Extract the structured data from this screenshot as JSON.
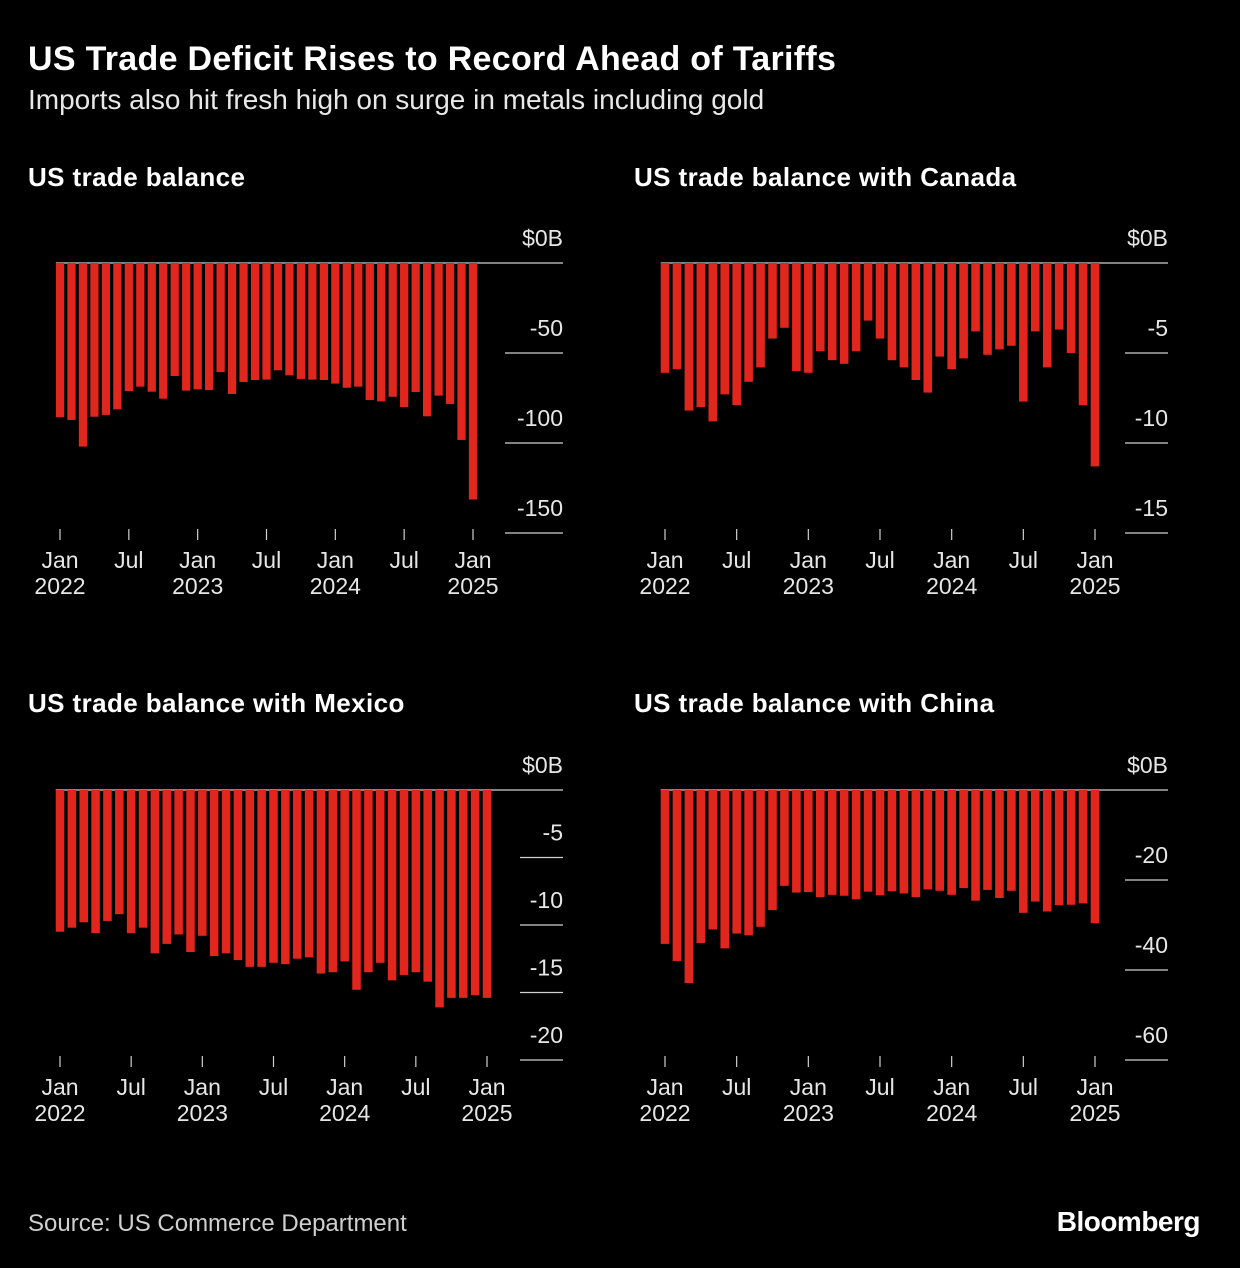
{
  "title": "US Trade Deficit Rises to Record Ahead of Tariffs",
  "subtitle": "Imports also hit fresh high on surge in metals including gold",
  "source": "Source: US Commerce Department",
  "brand": "Bloomberg",
  "colors": {
    "bar": "#e0261d",
    "background": "#000000",
    "axis": "#d0d0d0"
  },
  "chart_data": [
    {
      "type": "bar",
      "title": "US trade balance",
      "ylim": [
        -150,
        0
      ],
      "yticks": [
        0,
        -50,
        -100,
        -150
      ],
      "ytick_labels": [
        "$0B",
        "-50",
        "-100",
        "-150"
      ],
      "xtick_labels": [
        [
          "Jan",
          "2022"
        ],
        [
          "Jul",
          ""
        ],
        [
          "Jan",
          "2023"
        ],
        [
          "Jul",
          ""
        ],
        [
          "Jan",
          "2024"
        ],
        [
          "Jul",
          ""
        ],
        [
          "Jan",
          "2025"
        ]
      ],
      "x": [
        "2022-01",
        "2022-02",
        "2022-03",
        "2022-04",
        "2022-05",
        "2022-06",
        "2022-07",
        "2022-08",
        "2022-09",
        "2022-10",
        "2022-11",
        "2022-12",
        "2023-01",
        "2023-02",
        "2023-03",
        "2023-04",
        "2023-05",
        "2023-06",
        "2023-07",
        "2023-08",
        "2023-09",
        "2023-10",
        "2023-11",
        "2023-12",
        "2024-01",
        "2024-02",
        "2024-03",
        "2024-04",
        "2024-05",
        "2024-06",
        "2024-07",
        "2024-08",
        "2024-09",
        "2024-10",
        "2024-11",
        "2024-12",
        "2025-01"
      ],
      "values": [
        -85.7,
        -87.2,
        -102.0,
        -85.4,
        -84.4,
        -81.3,
        -71.1,
        -68.7,
        -71.5,
        -75.4,
        -62.8,
        -70.9,
        -70.2,
        -70.6,
        -60.6,
        -72.8,
        -66.1,
        -65.0,
        -64.8,
        -59.6,
        -62.4,
        -64.4,
        -64.8,
        -65.0,
        -67.0,
        -69.3,
        -68.7,
        -76.1,
        -76.9,
        -74.3,
        -80.0,
        -71.7,
        -85.2,
        -73.7,
        -78.3,
        -98.3,
        -131.4
      ]
    },
    {
      "type": "bar",
      "title": "US trade balance with Canada",
      "ylim": [
        -15,
        0
      ],
      "yticks": [
        0,
        -5,
        -10,
        -15
      ],
      "ytick_labels": [
        "$0B",
        "-5",
        "-10",
        "-15"
      ],
      "xtick_labels": [
        [
          "Jan",
          "2022"
        ],
        [
          "Jul",
          ""
        ],
        [
          "Jan",
          "2023"
        ],
        [
          "Jul",
          ""
        ],
        [
          "Jan",
          "2024"
        ],
        [
          "Jul",
          ""
        ],
        [
          "Jan",
          "2025"
        ]
      ],
      "x": [
        "2022-01",
        "2022-02",
        "2022-03",
        "2022-04",
        "2022-05",
        "2022-06",
        "2022-07",
        "2022-08",
        "2022-09",
        "2022-10",
        "2022-11",
        "2022-12",
        "2023-01",
        "2023-02",
        "2023-03",
        "2023-04",
        "2023-05",
        "2023-06",
        "2023-07",
        "2023-08",
        "2023-09",
        "2023-10",
        "2023-11",
        "2023-12",
        "2024-01",
        "2024-02",
        "2024-03",
        "2024-04",
        "2024-05",
        "2024-06",
        "2024-07",
        "2024-08",
        "2024-09",
        "2024-10",
        "2024-11",
        "2024-12",
        "2025-01"
      ],
      "values": [
        -6.1,
        -5.9,
        -8.2,
        -8.0,
        -8.8,
        -7.3,
        -7.9,
        -6.6,
        -5.8,
        -4.2,
        -3.6,
        -6.0,
        -6.1,
        -4.9,
        -5.4,
        -5.6,
        -4.9,
        -3.2,
        -4.2,
        -5.4,
        -5.8,
        -6.5,
        -7.2,
        -5.2,
        -5.9,
        -5.3,
        -3.8,
        -5.1,
        -4.8,
        -4.6,
        -7.7,
        -3.8,
        -5.8,
        -3.7,
        -5.0,
        -7.9,
        -11.3
      ]
    },
    {
      "type": "bar",
      "title": "US trade balance with Mexico",
      "ylim": [
        -20,
        0
      ],
      "yticks": [
        0,
        -5,
        -10,
        -15,
        -20
      ],
      "ytick_labels": [
        "$0B",
        "-5",
        "-10",
        "-15",
        "-20"
      ],
      "xtick_labels": [
        [
          "Jan",
          "2022"
        ],
        [
          "Jul",
          ""
        ],
        [
          "Jan",
          "2023"
        ],
        [
          "Jul",
          ""
        ],
        [
          "Jan",
          "2024"
        ],
        [
          "Jul",
          ""
        ],
        [
          "Jan",
          "2025"
        ]
      ],
      "x": [
        "2022-01",
        "2022-02",
        "2022-03",
        "2022-04",
        "2022-05",
        "2022-06",
        "2022-07",
        "2022-08",
        "2022-09",
        "2022-10",
        "2022-11",
        "2022-12",
        "2023-01",
        "2023-02",
        "2023-03",
        "2023-04",
        "2023-05",
        "2023-06",
        "2023-07",
        "2023-08",
        "2023-09",
        "2023-10",
        "2023-11",
        "2023-12",
        "2024-01",
        "2024-02",
        "2024-03",
        "2024-04",
        "2024-05",
        "2024-06",
        "2024-07",
        "2024-08",
        "2024-09",
        "2024-10",
        "2024-11",
        "2024-12",
        "2025-01"
      ],
      "values": [
        -10.5,
        -10.2,
        -9.8,
        -10.6,
        -9.7,
        -9.2,
        -10.6,
        -10.2,
        -12.1,
        -11.4,
        -10.7,
        -12.0,
        -10.8,
        -12.3,
        -12.1,
        -12.6,
        -13.1,
        -13.1,
        -12.8,
        -12.9,
        -12.5,
        -12.4,
        -13.6,
        -13.5,
        -12.7,
        -14.8,
        -13.5,
        -12.8,
        -14.1,
        -13.7,
        -13.5,
        -14.2,
        -16.1,
        -15.4,
        -15.4,
        -15.2,
        -15.4
      ]
    },
    {
      "type": "bar",
      "title": "US trade balance with China",
      "ylim": [
        -60,
        0
      ],
      "yticks": [
        0,
        -20,
        -40,
        -60
      ],
      "ytick_labels": [
        "$0B",
        "-20",
        "-40",
        "-60"
      ],
      "xtick_labels": [
        [
          "Jan",
          "2022"
        ],
        [
          "Jul",
          ""
        ],
        [
          "Jan",
          "2023"
        ],
        [
          "Jul",
          ""
        ],
        [
          "Jan",
          "2024"
        ],
        [
          "Jul",
          ""
        ],
        [
          "Jan",
          "2025"
        ]
      ],
      "x": [
        "2022-01",
        "2022-02",
        "2022-03",
        "2022-04",
        "2022-05",
        "2022-06",
        "2022-07",
        "2022-08",
        "2022-09",
        "2022-10",
        "2022-11",
        "2022-12",
        "2023-01",
        "2023-02",
        "2023-03",
        "2023-04",
        "2023-05",
        "2023-06",
        "2023-07",
        "2023-08",
        "2023-09",
        "2023-10",
        "2023-11",
        "2023-12",
        "2024-01",
        "2024-02",
        "2024-03",
        "2024-04",
        "2024-05",
        "2024-06",
        "2024-07",
        "2024-08",
        "2024-09",
        "2024-10",
        "2024-11",
        "2024-12",
        "2025-01"
      ],
      "values": [
        -34.2,
        -38.0,
        -42.9,
        -34.0,
        -31.0,
        -35.2,
        -31.9,
        -32.3,
        -30.4,
        -26.7,
        -21.3,
        -22.8,
        -22.7,
        -23.8,
        -23.3,
        -23.5,
        -24.3,
        -22.6,
        -23.4,
        -22.5,
        -23.0,
        -23.8,
        -22.1,
        -22.4,
        -23.3,
        -21.8,
        -24.6,
        -22.2,
        -24.0,
        -22.4,
        -27.3,
        -24.8,
        -27.0,
        -25.6,
        -25.5,
        -25.2,
        -29.6
      ]
    }
  ]
}
